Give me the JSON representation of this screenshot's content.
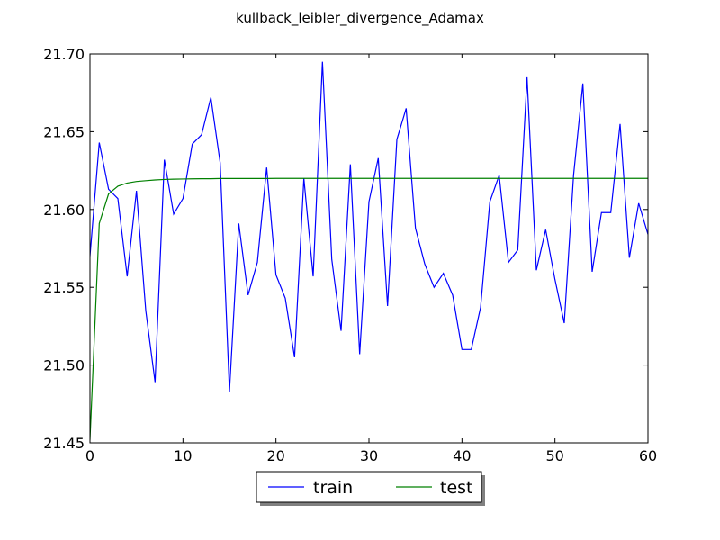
{
  "chart_data": {
    "type": "line",
    "title": "kullback_leibler_divergence_Adamax",
    "xlabel": "",
    "ylabel": "",
    "xlim": [
      0,
      60
    ],
    "ylim": [
      21.45,
      21.7
    ],
    "x_ticks": [
      0,
      10,
      20,
      30,
      40,
      50,
      60
    ],
    "y_ticks": [
      21.45,
      21.5,
      21.55,
      21.6,
      21.65,
      21.7
    ],
    "x_tick_labels": [
      "0",
      "10",
      "20",
      "30",
      "40",
      "50",
      "60"
    ],
    "y_tick_labels": [
      "21.45",
      "21.50",
      "21.55",
      "21.60",
      "21.65",
      "21.70"
    ],
    "grid": false,
    "legend_position": "lower-center-outside",
    "series": [
      {
        "name": "train",
        "color": "#0000ff",
        "x": [
          0,
          1,
          2,
          3,
          4,
          5,
          6,
          7,
          8,
          9,
          10,
          11,
          12,
          13,
          14,
          15,
          16,
          17,
          18,
          19,
          20,
          21,
          22,
          23,
          24,
          25,
          26,
          27,
          28,
          29,
          30,
          31,
          32,
          33,
          34,
          35,
          36,
          37,
          38,
          39,
          40,
          41,
          42,
          43,
          44,
          45,
          46,
          47,
          48,
          49,
          50,
          51,
          52,
          53,
          54,
          55,
          56,
          57,
          58,
          59,
          60
        ],
        "values": [
          21.57,
          21.643,
          21.613,
          21.607,
          21.557,
          21.612,
          21.535,
          21.489,
          21.632,
          21.597,
          21.607,
          21.642,
          21.648,
          21.672,
          21.63,
          21.483,
          21.591,
          21.545,
          21.566,
          21.627,
          21.558,
          21.543,
          21.505,
          21.62,
          21.557,
          21.695,
          21.568,
          21.522,
          21.629,
          21.507,
          21.605,
          21.633,
          21.538,
          21.645,
          21.665,
          21.588,
          21.565,
          21.55,
          21.559,
          21.545,
          21.51,
          21.51,
          21.537,
          21.605,
          21.622,
          21.566,
          21.574,
          21.685,
          21.561,
          21.587,
          21.555,
          21.527,
          21.622,
          21.681,
          21.56,
          21.598,
          21.598,
          21.655,
          21.569,
          21.604,
          21.584
        ]
      },
      {
        "name": "test",
        "color": "#008000",
        "x": [
          0,
          1,
          2,
          3,
          4,
          5,
          6,
          7,
          8,
          9,
          10,
          11,
          12,
          13,
          14,
          15,
          16,
          17,
          18,
          19,
          20,
          21,
          22,
          23,
          24,
          25,
          26,
          27,
          28,
          29,
          30,
          31,
          32,
          33,
          34,
          35,
          36,
          37,
          38,
          39,
          40,
          41,
          42,
          43,
          44,
          45,
          46,
          47,
          48,
          49,
          50,
          51,
          52,
          53,
          54,
          55,
          56,
          57,
          58,
          59,
          60
        ],
        "values": [
          21.452,
          21.591,
          21.61,
          21.615,
          21.617,
          21.618,
          21.6185,
          21.619,
          21.6193,
          21.6195,
          21.6196,
          21.6197,
          21.6198,
          21.6198,
          21.6199,
          21.6199,
          21.6199,
          21.6199,
          21.6199,
          21.6199,
          21.62,
          21.62,
          21.62,
          21.62,
          21.62,
          21.62,
          21.62,
          21.62,
          21.62,
          21.62,
          21.62,
          21.62,
          21.62,
          21.62,
          21.62,
          21.62,
          21.62,
          21.62,
          21.62,
          21.62,
          21.62,
          21.62,
          21.62,
          21.62,
          21.62,
          21.62,
          21.62,
          21.62,
          21.62,
          21.62,
          21.62,
          21.62,
          21.62,
          21.62,
          21.62,
          21.62,
          21.62,
          21.62,
          21.62,
          21.62,
          21.62
        ]
      }
    ]
  }
}
